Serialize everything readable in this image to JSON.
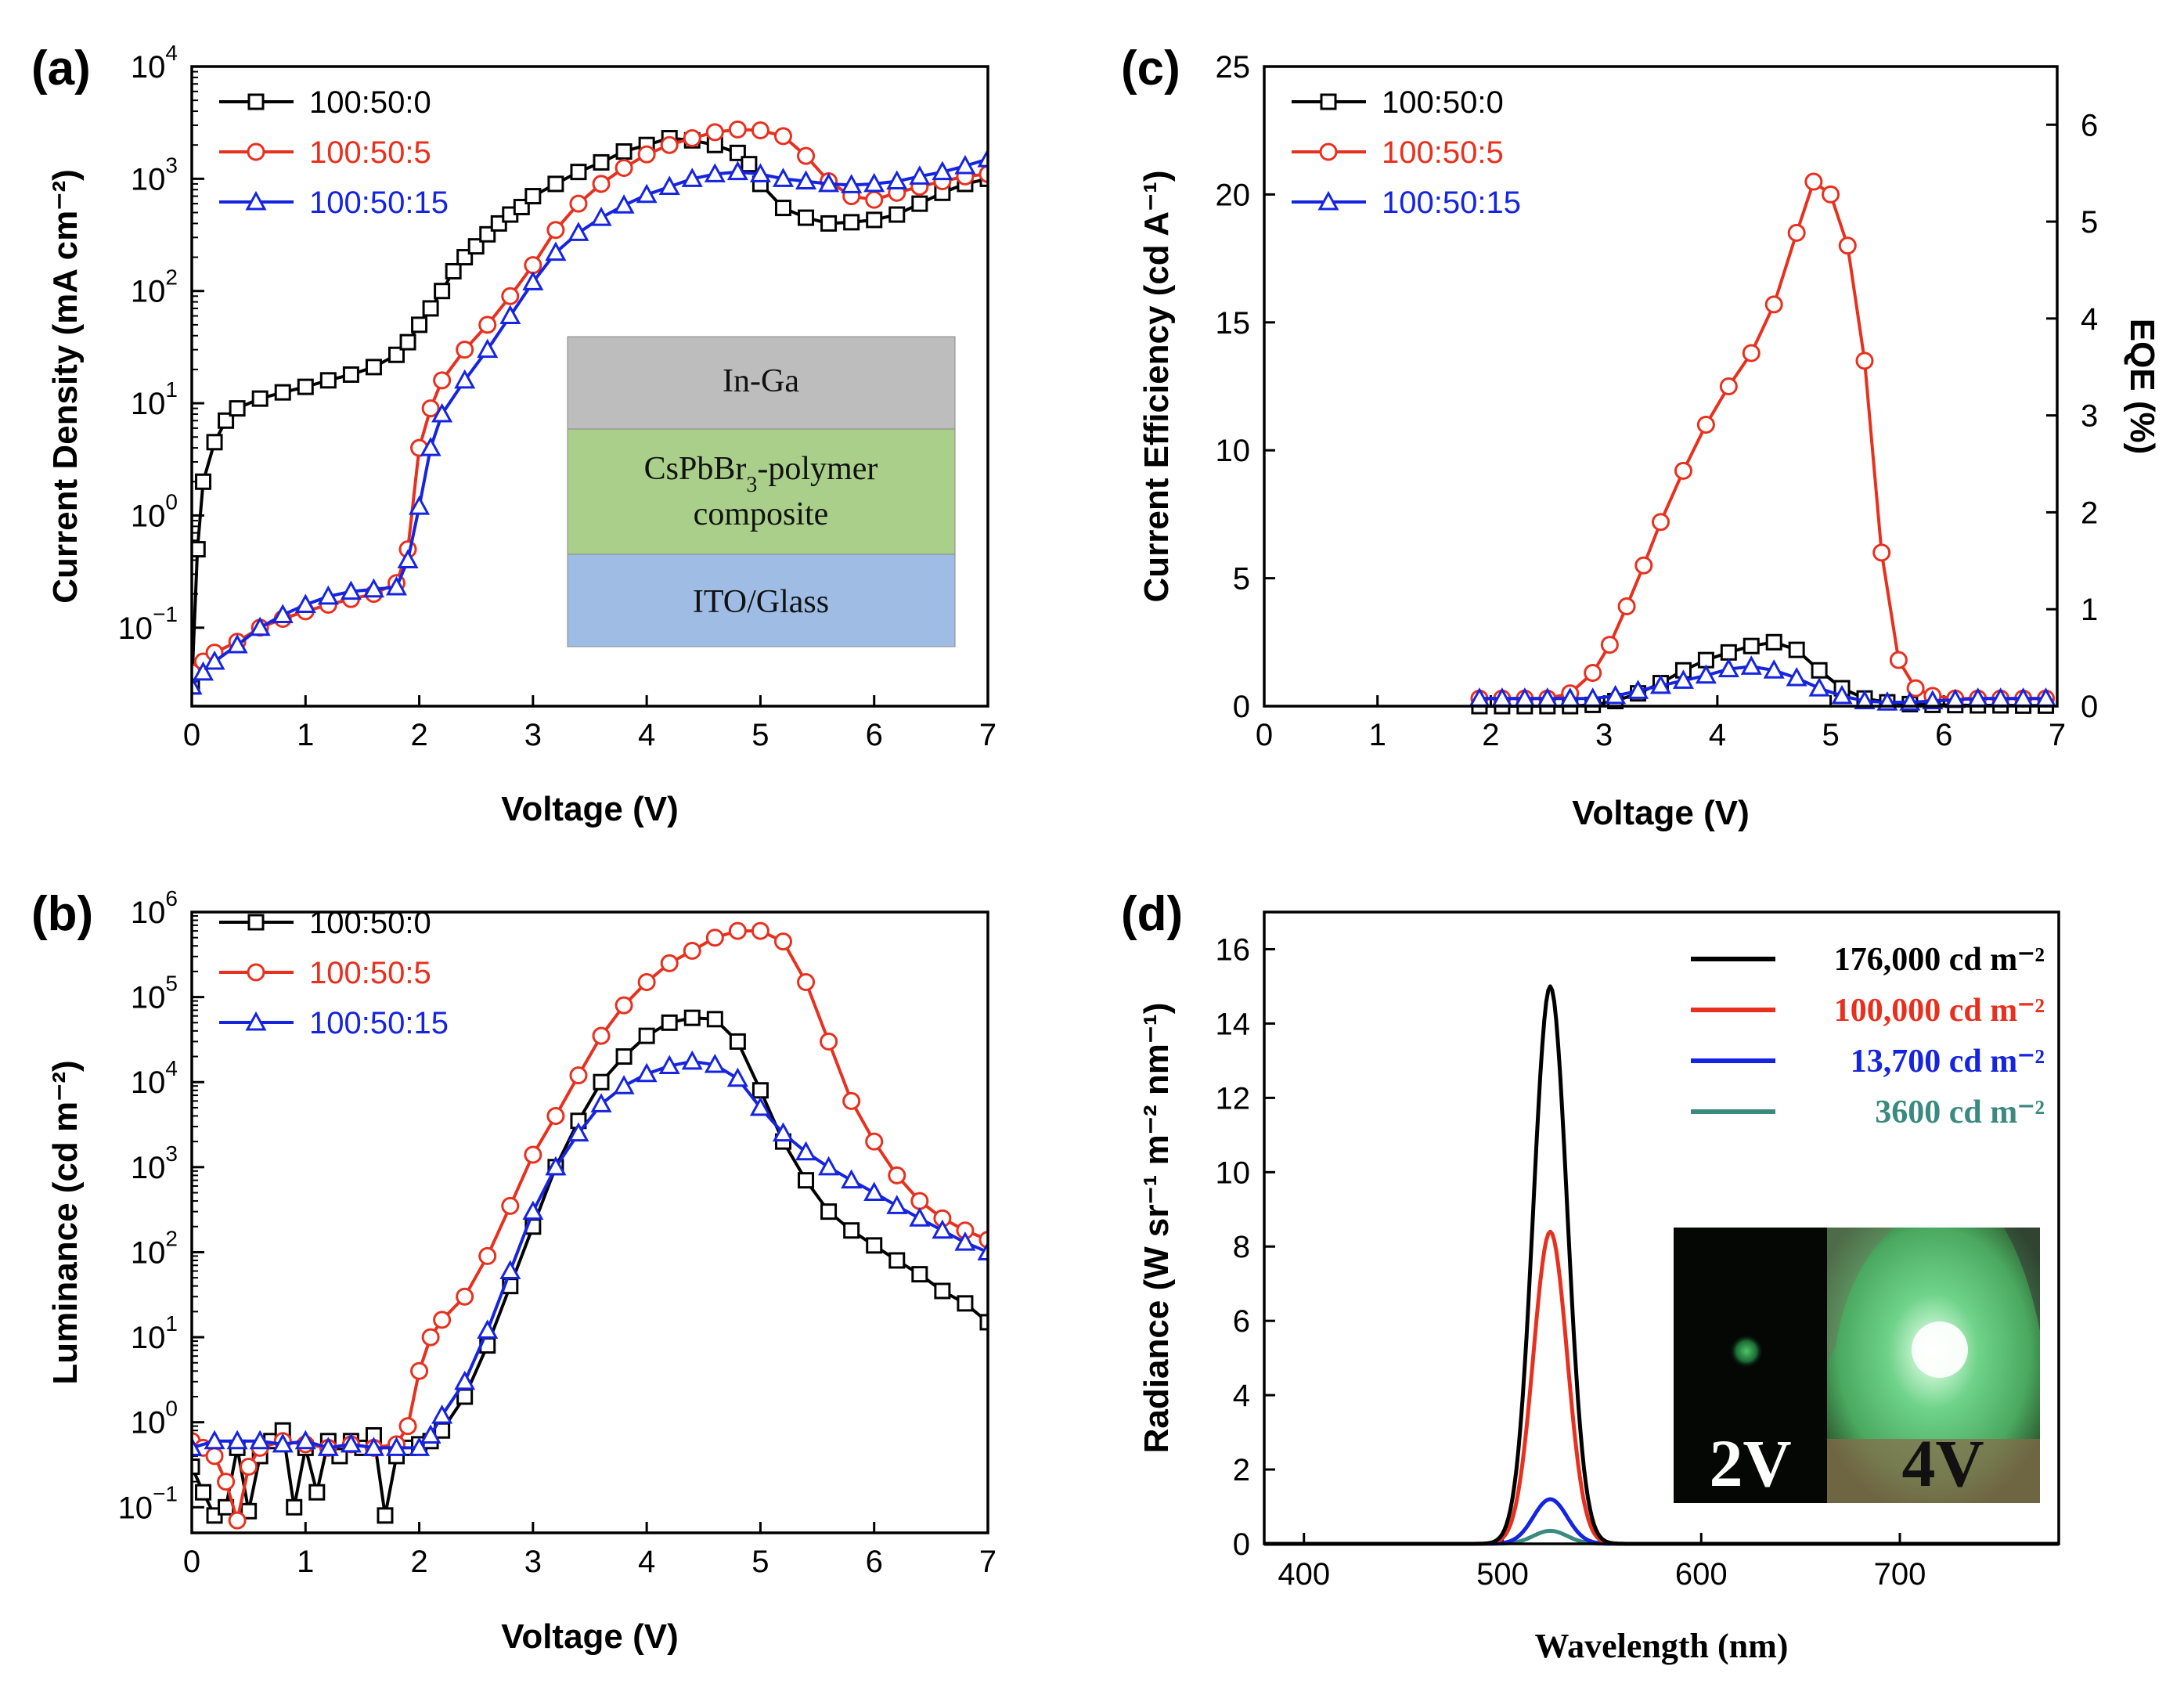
{
  "chart_data": [
    {
      "id": "a",
      "panel_label": "(a)",
      "type": "line",
      "xlabel": "Voltage (V)",
      "ylabel": "Current Density (mA cm⁻²)",
      "yscale": "log",
      "xlim": [
        0,
        7
      ],
      "ylim": [
        0.02,
        10000
      ],
      "x_ticks": [
        "0",
        "1",
        "2",
        "3",
        "4",
        "5",
        "6",
        "7"
      ],
      "y_ticks": [
        {
          "base": "10",
          "exp": "−1"
        },
        {
          "base": "10",
          "exp": "0"
        },
        {
          "base": "10",
          "exp": "1"
        },
        {
          "base": "10",
          "exp": "2"
        },
        {
          "base": "10",
          "exp": "3"
        },
        {
          "base": "10",
          "exp": "4"
        }
      ],
      "legend_position": "top-left",
      "series": [
        {
          "name": "100:50:0",
          "color": "#000000",
          "marker": "square",
          "x": [
            0,
            0.05,
            0.1,
            0.2,
            0.3,
            0.4,
            0.6,
            0.8,
            1.0,
            1.2,
            1.4,
            1.6,
            1.8,
            1.9,
            2.0,
            2.1,
            2.2,
            2.3,
            2.4,
            2.5,
            2.6,
            2.7,
            2.8,
            2.9,
            3.0,
            3.2,
            3.4,
            3.6,
            3.8,
            4.0,
            4.2,
            4.4,
            4.6,
            4.8,
            4.9,
            5.0,
            5.2,
            5.4,
            5.6,
            5.8,
            6.0,
            6.2,
            6.4,
            6.6,
            6.8,
            7.0
          ],
          "y": [
            0.03,
            0.5,
            2,
            4.5,
            7,
            9,
            11,
            12.5,
            14,
            16,
            18,
            21,
            27,
            35,
            50,
            70,
            100,
            150,
            200,
            250,
            320,
            400,
            480,
            560,
            700,
            900,
            1150,
            1400,
            1750,
            2000,
            2300,
            2200,
            2000,
            1700,
            1350,
            900,
            550,
            450,
            400,
            410,
            430,
            480,
            600,
            750,
            900,
            1000
          ]
        },
        {
          "name": "100:50:5",
          "color": "#e8301e",
          "marker": "circle",
          "x": [
            0,
            0.1,
            0.2,
            0.4,
            0.6,
            0.8,
            1.0,
            1.2,
            1.4,
            1.6,
            1.8,
            1.9,
            2.0,
            2.1,
            2.2,
            2.4,
            2.6,
            2.8,
            3.0,
            3.2,
            3.4,
            3.6,
            3.8,
            4.0,
            4.2,
            4.4,
            4.6,
            4.8,
            5.0,
            5.2,
            5.4,
            5.6,
            5.8,
            6.0,
            6.2,
            6.4,
            6.6,
            6.8,
            7.0
          ],
          "y": [
            0.04,
            0.05,
            0.06,
            0.075,
            0.1,
            0.12,
            0.14,
            0.16,
            0.18,
            0.2,
            0.25,
            0.5,
            4,
            9,
            16,
            30,
            50,
            90,
            170,
            350,
            600,
            900,
            1250,
            1650,
            2000,
            2300,
            2600,
            2750,
            2700,
            2400,
            1600,
            950,
            700,
            650,
            750,
            850,
            950,
            1050,
            1100
          ]
        },
        {
          "name": "100:50:15",
          "color": "#1524e0",
          "marker": "triangle",
          "x": [
            0,
            0.1,
            0.2,
            0.4,
            0.6,
            0.8,
            1.0,
            1.2,
            1.4,
            1.6,
            1.8,
            1.9,
            2.0,
            2.1,
            2.2,
            2.4,
            2.6,
            2.8,
            3.0,
            3.2,
            3.4,
            3.6,
            3.8,
            4.0,
            4.2,
            4.4,
            4.6,
            4.8,
            5.0,
            5.2,
            5.4,
            5.6,
            5.8,
            6.0,
            6.2,
            6.4,
            6.6,
            6.8,
            7.0
          ],
          "y": [
            0.03,
            0.04,
            0.05,
            0.07,
            0.1,
            0.13,
            0.16,
            0.19,
            0.21,
            0.22,
            0.23,
            0.4,
            1.2,
            4,
            8,
            16,
            30,
            60,
            120,
            220,
            330,
            450,
            580,
            720,
            850,
            1000,
            1100,
            1150,
            1100,
            1000,
            950,
            900,
            880,
            900,
            950,
            1050,
            1150,
            1300,
            1500
          ]
        }
      ],
      "inset": {
        "layers": [
          {
            "label": "In-Ga",
            "color": "#bdbdbd"
          },
          {
            "label": "CsPbBr₃-polymer composite",
            "color": "#a9cf8a"
          },
          {
            "label": "ITO/Glass",
            "color": "#9fbde4"
          }
        ]
      }
    },
    {
      "id": "b",
      "panel_label": "(b)",
      "type": "line",
      "xlabel": "Voltage (V)",
      "ylabel": "Luminance (cd m⁻²)",
      "yscale": "log",
      "xlim": [
        0,
        7
      ],
      "ylim": [
        0.05,
        1000000
      ],
      "x_ticks": [
        "0",
        "1",
        "2",
        "3",
        "4",
        "5",
        "6",
        "7"
      ],
      "y_ticks": [
        {
          "base": "10",
          "exp": "−1"
        },
        {
          "base": "10",
          "exp": "0"
        },
        {
          "base": "10",
          "exp": "1"
        },
        {
          "base": "10",
          "exp": "2"
        },
        {
          "base": "10",
          "exp": "3"
        },
        {
          "base": "10",
          "exp": "4"
        },
        {
          "base": "10",
          "exp": "5"
        },
        {
          "base": "10",
          "exp": "6"
        }
      ],
      "legend_position": "top-left",
      "series": [
        {
          "name": "100:50:0",
          "color": "#000000",
          "marker": "square",
          "x": [
            0,
            0.1,
            0.2,
            0.3,
            0.4,
            0.5,
            0.6,
            0.7,
            0.8,
            0.9,
            1.0,
            1.1,
            1.2,
            1.3,
            1.4,
            1.5,
            1.6,
            1.7,
            1.8,
            1.9,
            2.0,
            2.1,
            2.2,
            2.4,
            2.6,
            2.8,
            3.0,
            3.2,
            3.4,
            3.6,
            3.8,
            4.0,
            4.2,
            4.4,
            4.6,
            4.8,
            5.0,
            5.2,
            5.4,
            5.6,
            5.8,
            6.0,
            6.2,
            6.4,
            6.6,
            6.8,
            7.0
          ],
          "y": [
            0.3,
            0.15,
            0.08,
            0.1,
            0.5,
            0.09,
            0.4,
            0.6,
            0.8,
            0.1,
            0.5,
            0.15,
            0.6,
            0.4,
            0.6,
            0.5,
            0.7,
            0.08,
            0.4,
            0.5,
            0.55,
            0.6,
            0.8,
            2,
            8,
            40,
            200,
            1000,
            3500,
            10000,
            20000,
            35000,
            50000,
            57000,
            55000,
            30000,
            8000,
            2000,
            700,
            300,
            180,
            120,
            80,
            55,
            35,
            25,
            15
          ]
        },
        {
          "name": "100:50:5",
          "color": "#e8301e",
          "marker": "circle",
          "x": [
            0,
            0.1,
            0.2,
            0.3,
            0.4,
            0.5,
            0.6,
            0.8,
            1.0,
            1.2,
            1.4,
            1.6,
            1.8,
            1.9,
            2.0,
            2.1,
            2.2,
            2.4,
            2.6,
            2.8,
            3.0,
            3.2,
            3.4,
            3.6,
            3.8,
            4.0,
            4.2,
            4.4,
            4.6,
            4.8,
            5.0,
            5.2,
            5.4,
            5.6,
            5.8,
            6.0,
            6.2,
            6.4,
            6.6,
            6.8,
            7.0
          ],
          "y": [
            0.6,
            0.5,
            0.4,
            0.2,
            0.07,
            0.3,
            0.5,
            0.6,
            0.55,
            0.5,
            0.55,
            0.5,
            0.55,
            0.9,
            4,
            10,
            16,
            30,
            90,
            350,
            1400,
            4000,
            12000,
            35000,
            80000,
            150000,
            250000,
            350000,
            500000,
            600000,
            600000,
            450000,
            150000,
            30000,
            6000,
            2000,
            800,
            400,
            250,
            180,
            140
          ]
        },
        {
          "name": "100:50:15",
          "color": "#1524e0",
          "marker": "triangle",
          "x": [
            0,
            0.2,
            0.4,
            0.6,
            0.8,
            1.0,
            1.2,
            1.4,
            1.6,
            1.8,
            2.0,
            2.1,
            2.2,
            2.4,
            2.6,
            2.8,
            3.0,
            3.2,
            3.4,
            3.6,
            3.8,
            4.0,
            4.2,
            4.4,
            4.6,
            4.8,
            5.0,
            5.2,
            5.4,
            5.6,
            5.8,
            6.0,
            6.2,
            6.4,
            6.6,
            6.8,
            7.0
          ],
          "y": [
            0.5,
            0.6,
            0.6,
            0.6,
            0.55,
            0.6,
            0.5,
            0.55,
            0.5,
            0.5,
            0.5,
            0.7,
            1.2,
            3,
            12,
            60,
            300,
            1000,
            2500,
            5500,
            9000,
            12500,
            15500,
            17500,
            16000,
            11000,
            5000,
            2500,
            1500,
            1000,
            700,
            500,
            350,
            250,
            180,
            130,
            100
          ]
        }
      ]
    },
    {
      "id": "c",
      "panel_label": "(c)",
      "type": "line",
      "xlabel": "Voltage (V)",
      "ylabel": "Current Efficiency (cd A⁻¹)",
      "ylabel_right": "EQE (%)",
      "yscale": "linear",
      "xlim": [
        0,
        7
      ],
      "ylim": [
        0,
        25
      ],
      "ylim_right": [
        0,
        6.6
      ],
      "x_ticks": [
        "0",
        "1",
        "2",
        "3",
        "4",
        "5",
        "6",
        "7"
      ],
      "y_ticks": [
        "0",
        "5",
        "10",
        "15",
        "20",
        "25"
      ],
      "y_ticks_right": [
        "0",
        "1",
        "2",
        "3",
        "4",
        "5",
        "6"
      ],
      "legend_position": "top-left",
      "series": [
        {
          "name": "100:50:0",
          "color": "#000000",
          "marker": "square",
          "x": [
            1.9,
            2.1,
            2.3,
            2.5,
            2.7,
            2.9,
            3.1,
            3.3,
            3.5,
            3.7,
            3.9,
            4.1,
            4.3,
            4.5,
            4.7,
            4.9,
            5.1,
            5.3,
            5.5,
            5.7,
            5.9,
            6.1,
            6.3,
            6.5,
            6.7,
            6.9
          ],
          "y": [
            0,
            0,
            0,
            0,
            0,
            0.05,
            0.2,
            0.5,
            0.9,
            1.4,
            1.8,
            2.1,
            2.35,
            2.5,
            2.2,
            1.4,
            0.7,
            0.3,
            0.15,
            0.08,
            0.05,
            0.04,
            0.03,
            0.03,
            0.02,
            0.02
          ]
        },
        {
          "name": "100:50:5",
          "color": "#e8301e",
          "marker": "circle",
          "x": [
            1.9,
            2.1,
            2.3,
            2.5,
            2.7,
            2.9,
            3.05,
            3.2,
            3.35,
            3.5,
            3.7,
            3.9,
            4.1,
            4.3,
            4.5,
            4.7,
            4.85,
            5.0,
            5.15,
            5.3,
            5.45,
            5.6,
            5.75,
            5.9,
            6.1,
            6.3,
            6.5,
            6.7,
            6.9
          ],
          "y": [
            0.3,
            0.3,
            0.3,
            0.3,
            0.5,
            1.3,
            2.4,
            3.9,
            5.5,
            7.2,
            9.2,
            11,
            12.5,
            13.8,
            15.7,
            18.5,
            20.5,
            20,
            18,
            13.5,
            6,
            1.8,
            0.7,
            0.4,
            0.3,
            0.3,
            0.3,
            0.3,
            0.3
          ]
        },
        {
          "name": "100:50:15",
          "color": "#1524e0",
          "marker": "triangle",
          "x": [
            1.9,
            2.1,
            2.3,
            2.5,
            2.7,
            2.9,
            3.1,
            3.3,
            3.5,
            3.7,
            3.9,
            4.1,
            4.3,
            4.5,
            4.7,
            4.9,
            5.1,
            5.3,
            5.5,
            5.7,
            5.9,
            6.1,
            6.3,
            6.5,
            6.7,
            6.9
          ],
          "y": [
            0.3,
            0.3,
            0.3,
            0.3,
            0.3,
            0.3,
            0.4,
            0.6,
            0.8,
            1.0,
            1.2,
            1.45,
            1.55,
            1.4,
            1.1,
            0.7,
            0.4,
            0.2,
            0.15,
            0.15,
            0.2,
            0.25,
            0.3,
            0.3,
            0.3,
            0.3
          ]
        }
      ]
    },
    {
      "id": "d",
      "panel_label": "(d)",
      "type": "line",
      "xlabel": "Wavelength (nm)",
      "ylabel": "Radiance (W sr⁻¹  m⁻² nm⁻¹)",
      "yscale": "linear",
      "xlim": [
        380,
        780
      ],
      "ylim": [
        0,
        17
      ],
      "x_ticks": [
        "400",
        "500",
        "600",
        "700"
      ],
      "y_ticks": [
        "0",
        "2",
        "4",
        "6",
        "8",
        "10",
        "12",
        "14",
        "16"
      ],
      "legend_position": "top-right",
      "peak_wavelength_nm": 524,
      "series": [
        {
          "name": "176,000 cd m⁻²",
          "color": "#000000",
          "peak": 15.0,
          "fwhm": 20
        },
        {
          "name": "100,000 cd m⁻²",
          "color": "#e8301e",
          "peak": 8.4,
          "fwhm": 20
        },
        {
          "name": "13,700 cd m⁻²",
          "color": "#1524e0",
          "peak": 1.2,
          "fwhm": 20
        },
        {
          "name": "3600 cd m⁻²",
          "color": "#3a8a80",
          "peak": 0.35,
          "fwhm": 20
        }
      ],
      "inset_photos": [
        {
          "label": "2V"
        },
        {
          "label": "4V"
        }
      ]
    }
  ]
}
